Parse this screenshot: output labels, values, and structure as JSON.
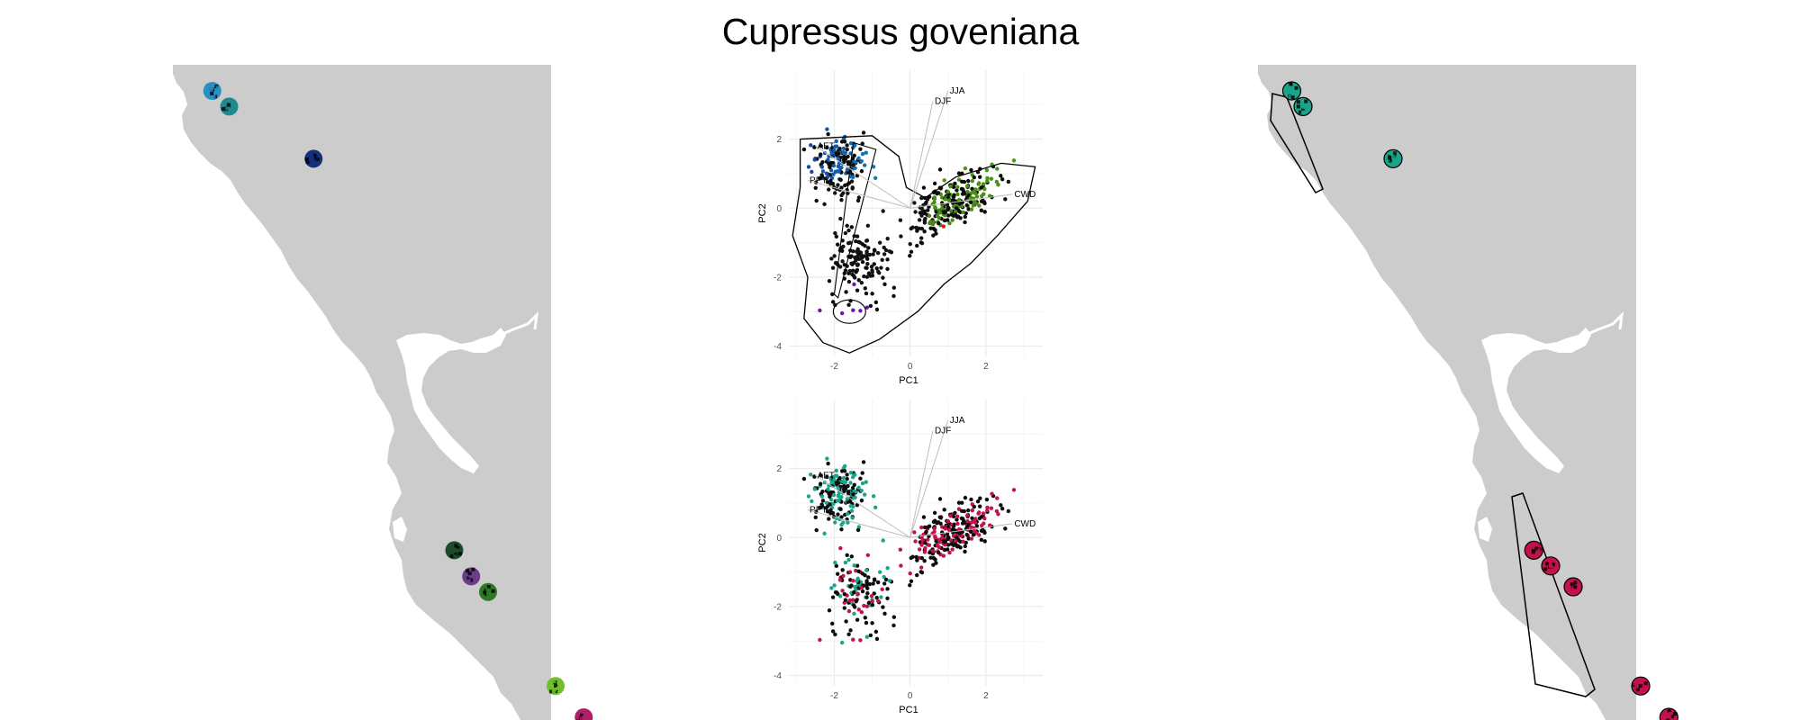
{
  "title": "Cupressus goveniana",
  "colors": {
    "land": "#cccccc",
    "water": "#ffffff",
    "grid": "#ebebeb",
    "hull": "#000000",
    "vector": "#bdbdbd",
    "cluster_a": "#1aa58a",
    "cluster_b": "#c2134a"
  },
  "chart_data": [
    {
      "type": "map",
      "panel": "left",
      "description_points": [
        {
          "lon": -124.05,
          "lat": 40.95,
          "color": "#2a8fc2"
        },
        {
          "lon": -123.9,
          "lat": 40.8,
          "color": "#1e8a8f"
        },
        {
          "lon": -123.15,
          "lat": 40.3,
          "color": "#14307a"
        },
        {
          "lon": -121.9,
          "lat": 36.55,
          "color": "#1d4a2c"
        },
        {
          "lon": -121.75,
          "lat": 36.3,
          "color": "#6a3c8a"
        },
        {
          "lon": -121.6,
          "lat": 36.15,
          "color": "#2c7a24"
        },
        {
          "lon": -121.0,
          "lat": 35.25,
          "color": "#6fc02c"
        },
        {
          "lon": -120.75,
          "lat": 34.95,
          "color": "#b0206a"
        }
      ]
    },
    {
      "type": "scatter",
      "panel": "pca-top",
      "xlabel": "PC1",
      "ylabel": "PC2",
      "xlim": [
        -3.2,
        3.5
      ],
      "ylim": [
        -4.3,
        4.0
      ],
      "xticks": [
        -2,
        0,
        2
      ],
      "yticks": [
        -4,
        -2,
        0,
        2
      ],
      "xtick_labels": [
        "-2",
        "0",
        "2"
      ],
      "ytick_labels": [
        "-4",
        "-2",
        "0",
        "2"
      ],
      "vectors": [
        {
          "label": "JJA",
          "x": 1.0,
          "y": 3.4
        },
        {
          "label": "DJF",
          "x": 0.6,
          "y": 3.1
        },
        {
          "label": "AET",
          "x": -2.5,
          "y": 1.8
        },
        {
          "label": "PPT",
          "x": -2.7,
          "y": 0.8
        },
        {
          "label": "CWD",
          "x": 2.7,
          "y": 0.4
        }
      ],
      "coloring": "continuous PC-space colour"
    },
    {
      "type": "scatter",
      "panel": "pca-bottom",
      "xlabel": "PC1",
      "ylabel": "PC2",
      "xlim": [
        -3.2,
        3.5
      ],
      "ylim": [
        -4.3,
        4.0
      ],
      "xticks": [
        -2,
        0,
        2
      ],
      "yticks": [
        -4,
        -2,
        0,
        2
      ],
      "xtick_labels": [
        "-2",
        "0",
        "2"
      ],
      "ytick_labels": [
        "-4",
        "-2",
        "0",
        "2"
      ],
      "vectors": [
        {
          "label": "JJA",
          "x": 1.0,
          "y": 3.4
        },
        {
          "label": "DJF",
          "x": 0.6,
          "y": 3.1
        },
        {
          "label": "AET",
          "x": -2.5,
          "y": 1.8
        },
        {
          "label": "PPT",
          "x": -2.7,
          "y": 0.8
        },
        {
          "label": "CWD",
          "x": 2.7,
          "y": 0.4
        }
      ],
      "clusters": [
        {
          "color": "#1aa58a",
          "region": "upper-left"
        },
        {
          "color": "#c2134a",
          "region": "center-right"
        }
      ]
    },
    {
      "type": "map",
      "panel": "right",
      "description_points": [
        {
          "lon": -124.1,
          "lat": 40.95,
          "color": "#1aa58a"
        },
        {
          "lon": -124.0,
          "lat": 40.8,
          "color": "#1aa58a"
        },
        {
          "lon": -123.2,
          "lat": 40.3,
          "color": "#1aa58a"
        },
        {
          "lon": -121.95,
          "lat": 36.55,
          "color": "#c2134a"
        },
        {
          "lon": -121.8,
          "lat": 36.4,
          "color": "#c2134a"
        },
        {
          "lon": -121.6,
          "lat": 36.2,
          "color": "#c2134a"
        },
        {
          "lon": -121.0,
          "lat": 35.25,
          "color": "#c2134a"
        },
        {
          "lon": -120.75,
          "lat": 34.95,
          "color": "#c2134a"
        }
      ]
    }
  ]
}
